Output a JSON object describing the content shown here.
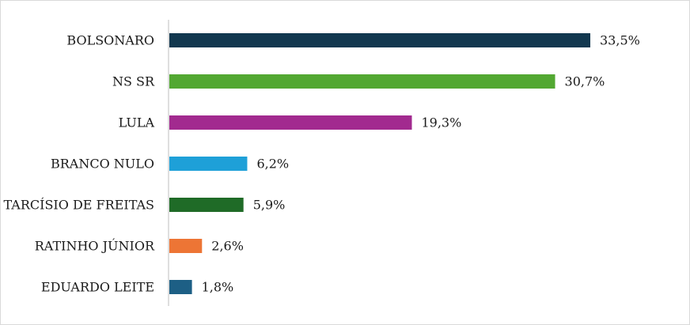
{
  "chart_data": {
    "type": "bar",
    "orientation": "horizontal",
    "categories": [
      "BOLSONARO",
      "NS SR",
      "LULA",
      "BRANCO NULO",
      "TARCÍSIO DE FREITAS",
      "RATINHO JÚNIOR",
      "EDUARDO LEITE"
    ],
    "values": [
      33.5,
      30.7,
      19.3,
      6.2,
      5.9,
      2.6,
      1.8
    ],
    "value_labels": [
      "33,5%",
      "30,7%",
      "19,3%",
      "6,2%",
      "5,9%",
      "2,6%",
      "1,8%"
    ],
    "colors": [
      "#12384f",
      "#52a832",
      "#a22a8f",
      "#1ea0d8",
      "#1f6b27",
      "#ed7535",
      "#1d5f85"
    ],
    "xlim": [
      0,
      35
    ],
    "grid": false,
    "legend": "none"
  }
}
